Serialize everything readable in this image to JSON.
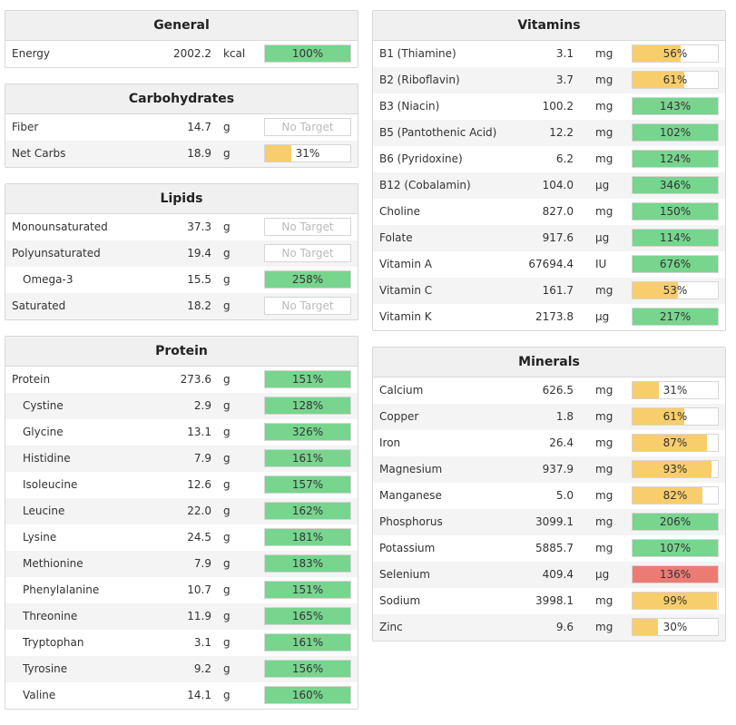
{
  "colors": {
    "green": "#77d58e",
    "yellow": "#f8cd6b",
    "red": "#ec7b74"
  },
  "sections": {
    "general": {
      "title": "General",
      "rows": [
        {
          "name": "Energy",
          "amount": "2002.2",
          "unit": "kcal",
          "percent": "100%",
          "level": 1.0,
          "color": "green"
        }
      ]
    },
    "carbohydrates": {
      "title": "Carbohydrates",
      "rows": [
        {
          "name": "Fiber",
          "amount": "14.7",
          "unit": "g",
          "percent": "No Target",
          "level": 0,
          "color": "none"
        },
        {
          "name": "Net Carbs",
          "amount": "18.9",
          "unit": "g",
          "percent": "31%",
          "level": 0.31,
          "color": "yellow"
        }
      ]
    },
    "lipids": {
      "title": "Lipids",
      "rows": [
        {
          "name": "Monounsaturated",
          "amount": "37.3",
          "unit": "g",
          "percent": "No Target",
          "level": 0,
          "color": "none"
        },
        {
          "name": "Polyunsaturated",
          "amount": "19.4",
          "unit": "g",
          "percent": "No Target",
          "level": 0,
          "color": "none"
        },
        {
          "name": "Omega-3",
          "amount": "15.5",
          "unit": "g",
          "percent": "258%",
          "level": 1.0,
          "color": "green",
          "indent": true
        },
        {
          "name": "Saturated",
          "amount": "18.2",
          "unit": "g",
          "percent": "No Target",
          "level": 0,
          "color": "none"
        }
      ]
    },
    "protein": {
      "title": "Protein",
      "rows": [
        {
          "name": "Protein",
          "amount": "273.6",
          "unit": "g",
          "percent": "151%",
          "level": 1.0,
          "color": "green"
        },
        {
          "name": "Cystine",
          "amount": "2.9",
          "unit": "g",
          "percent": "128%",
          "level": 1.0,
          "color": "green",
          "indent": true
        },
        {
          "name": "Glycine",
          "amount": "13.1",
          "unit": "g",
          "percent": "326%",
          "level": 1.0,
          "color": "green",
          "indent": true
        },
        {
          "name": "Histidine",
          "amount": "7.9",
          "unit": "g",
          "percent": "161%",
          "level": 1.0,
          "color": "green",
          "indent": true
        },
        {
          "name": "Isoleucine",
          "amount": "12.6",
          "unit": "g",
          "percent": "157%",
          "level": 1.0,
          "color": "green",
          "indent": true
        },
        {
          "name": "Leucine",
          "amount": "22.0",
          "unit": "g",
          "percent": "162%",
          "level": 1.0,
          "color": "green",
          "indent": true
        },
        {
          "name": "Lysine",
          "amount": "24.5",
          "unit": "g",
          "percent": "181%",
          "level": 1.0,
          "color": "green",
          "indent": true
        },
        {
          "name": "Methionine",
          "amount": "7.9",
          "unit": "g",
          "percent": "183%",
          "level": 1.0,
          "color": "green",
          "indent": true
        },
        {
          "name": "Phenylalanine",
          "amount": "10.7",
          "unit": "g",
          "percent": "151%",
          "level": 1.0,
          "color": "green",
          "indent": true
        },
        {
          "name": "Threonine",
          "amount": "11.9",
          "unit": "g",
          "percent": "165%",
          "level": 1.0,
          "color": "green",
          "indent": true
        },
        {
          "name": "Tryptophan",
          "amount": "3.1",
          "unit": "g",
          "percent": "161%",
          "level": 1.0,
          "color": "green",
          "indent": true
        },
        {
          "name": "Tyrosine",
          "amount": "9.2",
          "unit": "g",
          "percent": "156%",
          "level": 1.0,
          "color": "green",
          "indent": true
        },
        {
          "name": "Valine",
          "amount": "14.1",
          "unit": "g",
          "percent": "160%",
          "level": 1.0,
          "color": "green",
          "indent": true
        }
      ]
    },
    "vitamins": {
      "title": "Vitamins",
      "rows": [
        {
          "name": "B1 (Thiamine)",
          "amount": "3.1",
          "unit": "mg",
          "percent": "56%",
          "level": 0.56,
          "color": "yellow"
        },
        {
          "name": "B2 (Riboflavin)",
          "amount": "3.7",
          "unit": "mg",
          "percent": "61%",
          "level": 0.61,
          "color": "yellow"
        },
        {
          "name": "B3 (Niacin)",
          "amount": "100.2",
          "unit": "mg",
          "percent": "143%",
          "level": 1.0,
          "color": "green"
        },
        {
          "name": "B5 (Pantothenic Acid)",
          "amount": "12.2",
          "unit": "mg",
          "percent": "102%",
          "level": 1.0,
          "color": "green"
        },
        {
          "name": "B6 (Pyridoxine)",
          "amount": "6.2",
          "unit": "mg",
          "percent": "124%",
          "level": 1.0,
          "color": "green"
        },
        {
          "name": "B12 (Cobalamin)",
          "amount": "104.0",
          "unit": "µg",
          "percent": "346%",
          "level": 1.0,
          "color": "green"
        },
        {
          "name": "Choline",
          "amount": "827.0",
          "unit": "mg",
          "percent": "150%",
          "level": 1.0,
          "color": "green"
        },
        {
          "name": "Folate",
          "amount": "917.6",
          "unit": "µg",
          "percent": "114%",
          "level": 1.0,
          "color": "green"
        },
        {
          "name": "Vitamin A",
          "amount": "67694.4",
          "unit": "IU",
          "percent": "676%",
          "level": 1.0,
          "color": "green"
        },
        {
          "name": "Vitamin C",
          "amount": "161.7",
          "unit": "mg",
          "percent": "53%",
          "level": 0.53,
          "color": "yellow"
        },
        {
          "name": "Vitamin K",
          "amount": "2173.8",
          "unit": "µg",
          "percent": "217%",
          "level": 1.0,
          "color": "green"
        }
      ]
    },
    "minerals": {
      "title": "Minerals",
      "rows": [
        {
          "name": "Calcium",
          "amount": "626.5",
          "unit": "mg",
          "percent": "31%",
          "level": 0.31,
          "color": "yellow"
        },
        {
          "name": "Copper",
          "amount": "1.8",
          "unit": "mg",
          "percent": "61%",
          "level": 0.61,
          "color": "yellow"
        },
        {
          "name": "Iron",
          "amount": "26.4",
          "unit": "mg",
          "percent": "87%",
          "level": 0.87,
          "color": "yellow"
        },
        {
          "name": "Magnesium",
          "amount": "937.9",
          "unit": "mg",
          "percent": "93%",
          "level": 0.93,
          "color": "yellow"
        },
        {
          "name": "Manganese",
          "amount": "5.0",
          "unit": "mg",
          "percent": "82%",
          "level": 0.82,
          "color": "yellow"
        },
        {
          "name": "Phosphorus",
          "amount": "3099.1",
          "unit": "mg",
          "percent": "206%",
          "level": 1.0,
          "color": "green"
        },
        {
          "name": "Potassium",
          "amount": "5885.7",
          "unit": "mg",
          "percent": "107%",
          "level": 1.0,
          "color": "green"
        },
        {
          "name": "Selenium",
          "amount": "409.4",
          "unit": "µg",
          "percent": "136%",
          "level": 1.0,
          "color": "red"
        },
        {
          "name": "Sodium",
          "amount": "3998.1",
          "unit": "mg",
          "percent": "99%",
          "level": 0.99,
          "color": "yellow"
        },
        {
          "name": "Zinc",
          "amount": "9.6",
          "unit": "mg",
          "percent": "30%",
          "level": 0.3,
          "color": "yellow"
        }
      ]
    }
  }
}
